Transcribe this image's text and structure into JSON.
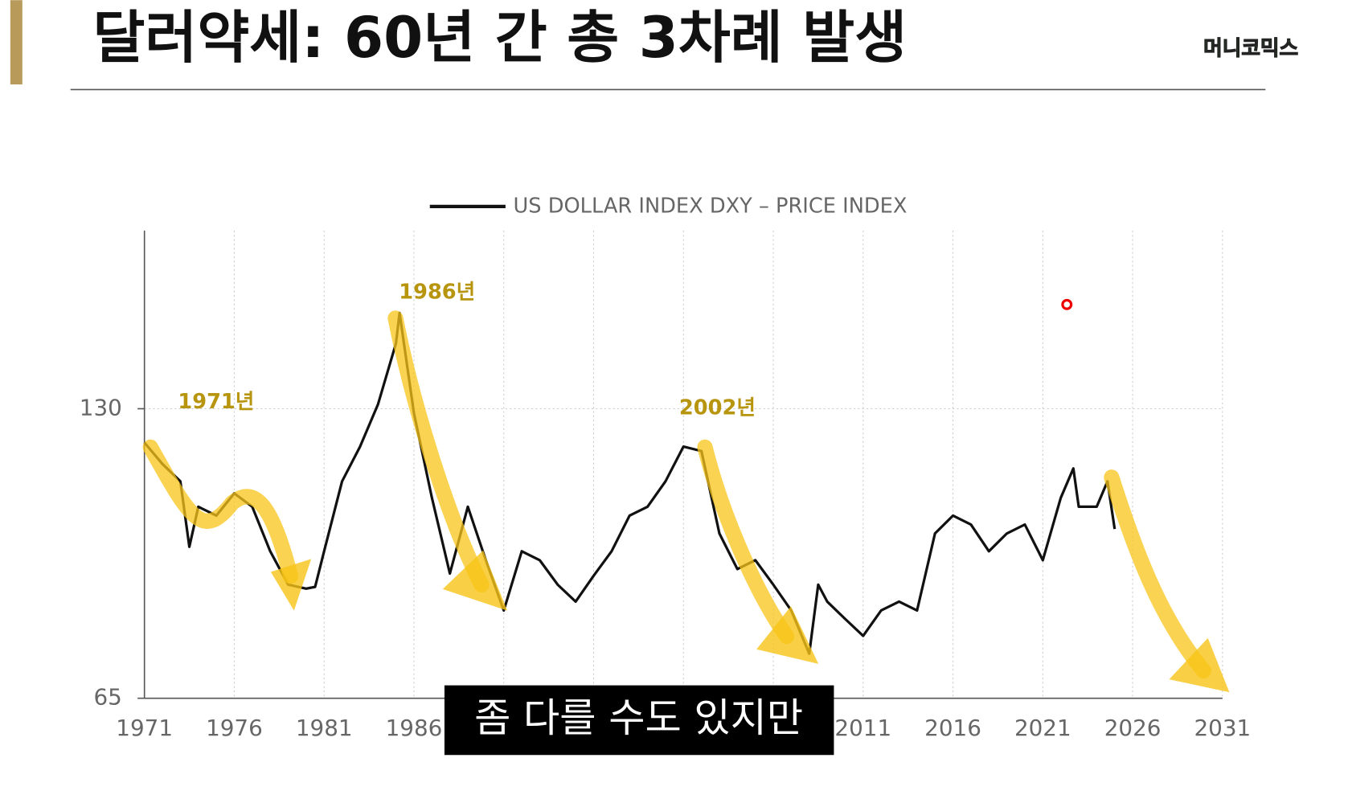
{
  "title": "달러약세: 60년 간 총 3차례 발생",
  "logo": "머니코믹스",
  "caption": "좀 다를 수도 있지만",
  "chart_data": {
    "type": "line",
    "annotations": [
      "1971년",
      "1986년",
      "2002년"
    ],
    "x": [
      1971,
      1972,
      1973,
      1973.5,
      1974,
      1975,
      1976,
      1977,
      1978,
      1979,
      1980,
      1980.5,
      1981,
      1982,
      1983,
      1984,
      1985,
      1985.2,
      1986,
      1987,
      1988,
      1989,
      1990,
      1991,
      1992,
      1993,
      1994,
      1995,
      1996,
      1997,
      1998,
      1999,
      2000,
      2001,
      2002,
      2003,
      2004,
      2005,
      2006,
      2007,
      2008,
      2008.5,
      2009,
      2010,
      2011,
      2012,
      2013,
      2014,
      2015,
      2016,
      2017,
      2018,
      2019,
      2020,
      2021,
      2022,
      2022.7,
      2023,
      2024,
      2024.6,
      2025
    ],
    "series": [
      {
        "name": "US DOLLAR INDEX DXY – PRICE INDEX",
        "color": "#111111",
        "values": [
          122.4,
          117.6,
          113.7,
          99,
          108,
          106,
          111,
          108,
          98,
          90.5,
          89.6,
          90,
          98,
          113.7,
          121.5,
          131,
          144.7,
          151.5,
          129,
          110,
          93,
          108,
          96,
          84.7,
          98,
          96,
          90.5,
          86.7,
          92.5,
          98,
          106,
          108,
          113.7,
          121.5,
          120.5,
          102,
          94,
          96,
          90.5,
          84.7,
          75,
          90.5,
          86.7,
          82.8,
          79,
          84.7,
          86.7,
          84.7,
          102,
          106,
          104,
          98,
          102,
          104,
          96,
          110,
          116.6,
          108,
          108,
          113.7,
          103
        ]
      }
    ],
    "xlim": [
      1971,
      2031
    ],
    "xticks": [
      1971,
      1976,
      1981,
      1986,
      1991,
      1996,
      2001,
      2006,
      2011,
      2016,
      2021,
      2026,
      2031
    ],
    "ylim": [
      65,
      170
    ],
    "yticks": [
      65,
      130
    ],
    "grid": true
  }
}
